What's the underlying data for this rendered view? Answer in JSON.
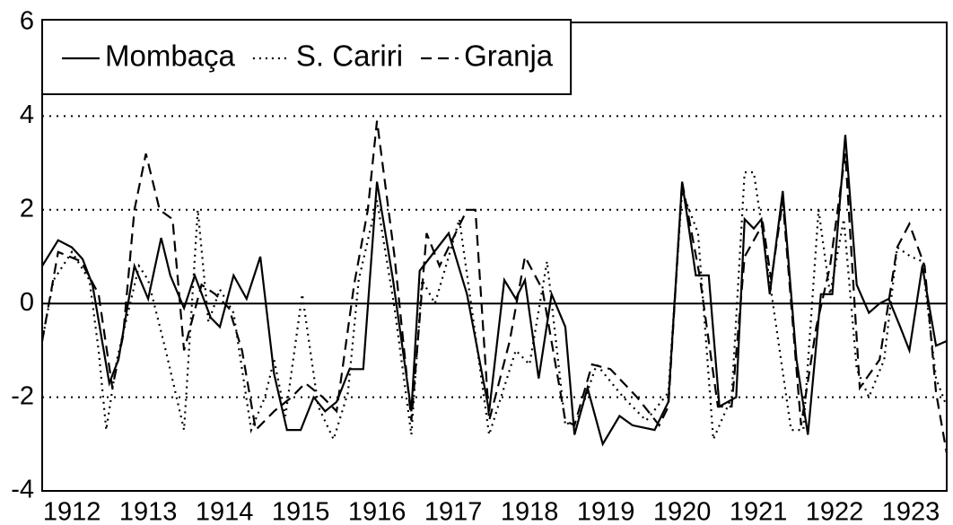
{
  "chart_data": {
    "type": "line",
    "xlim": [
      1911.61,
      1923.47
    ],
    "xticks": [
      1912,
      1913,
      1914,
      1915,
      1916,
      1917,
      1918,
      1919,
      1920,
      1921,
      1922,
      1923
    ],
    "ylim": [
      -4,
      6
    ],
    "yticks": [
      -4,
      -2,
      0,
      2,
      4,
      6
    ],
    "grid": true,
    "zero_line": true,
    "legend": "top-left",
    "series": [
      {
        "name": "Mombaça",
        "color": "#000000",
        "style": "solid",
        "x": [
          1911.61,
          1911.82,
          1912.0,
          1912.14,
          1912.27,
          1912.49,
          1912.61,
          1912.82,
          1913.0,
          1913.17,
          1913.29,
          1913.47,
          1913.61,
          1913.82,
          1913.94,
          1914.12,
          1914.29,
          1914.47,
          1914.65,
          1914.82,
          1915.0,
          1915.17,
          1915.32,
          1915.47,
          1915.64,
          1915.82,
          1916.0,
          1916.21,
          1916.45,
          1916.56,
          1916.94,
          1917.18,
          1917.47,
          1917.67,
          1917.82,
          1917.94,
          1918.12,
          1918.29,
          1918.47,
          1918.59,
          1918.76,
          1918.96,
          1919.18,
          1919.35,
          1919.64,
          1919.82,
          1920.0,
          1920.18,
          1920.35,
          1920.49,
          1920.71,
          1920.82,
          1920.94,
          1921.04,
          1921.15,
          1921.32,
          1921.5,
          1921.65,
          1921.82,
          1921.97,
          1922.14,
          1922.29,
          1922.45,
          1922.59,
          1922.71,
          1922.86,
          1922.98,
          1923.15,
          1923.33,
          1923.47
        ],
        "values": [
          0.8,
          1.35,
          1.2,
          0.95,
          0.4,
          -1.7,
          -1.2,
          0.8,
          0.1,
          1.4,
          0.6,
          -0.1,
          0.6,
          -0.3,
          -0.5,
          0.6,
          0.1,
          1.0,
          -1.5,
          -2.7,
          -2.7,
          -2.0,
          -2.3,
          -2.1,
          -1.4,
          -1.4,
          2.6,
          0.5,
          -2.3,
          0.7,
          1.5,
          0.2,
          -2.3,
          0.5,
          0.1,
          0.5,
          -1.6,
          0.2,
          -0.5,
          -2.8,
          -1.8,
          -3.0,
          -2.4,
          -2.6,
          -2.7,
          -2.1,
          2.6,
          0.6,
          0.6,
          -2.2,
          -2.0,
          1.8,
          1.6,
          1.8,
          0.2,
          2.4,
          -1.2,
          -2.8,
          0.2,
          0.2,
          3.6,
          0.4,
          -0.2,
          0.0,
          0.1,
          -0.5,
          -1.0,
          0.8,
          -0.9,
          -0.8
        ]
      },
      {
        "name": "S. Cariri",
        "color": "#000000",
        "style": "dotted",
        "x": [
          1911.61,
          1911.76,
          1912.0,
          1912.23,
          1912.35,
          1912.45,
          1912.59,
          1912.88,
          1913.0,
          1913.23,
          1913.47,
          1913.65,
          1913.79,
          1913.94,
          1914.12,
          1914.35,
          1914.53,
          1914.65,
          1914.8,
          1915.02,
          1915.23,
          1915.43,
          1915.62,
          1915.76,
          1916.0,
          1916.23,
          1916.45,
          1916.59,
          1916.76,
          1916.94,
          1917.08,
          1917.47,
          1917.82,
          1918.0,
          1918.23,
          1918.47,
          1918.65,
          1918.88,
          1919.23,
          1919.53,
          1919.82,
          1920.0,
          1920.21,
          1920.41,
          1920.65,
          1920.82,
          1920.94,
          1921.12,
          1921.43,
          1921.59,
          1921.79,
          1921.94,
          1922.12,
          1922.29,
          1922.45,
          1922.65,
          1922.82,
          1923.0,
          1923.15,
          1923.33,
          1923.47
        ],
        "values": [
          -0.8,
          0.5,
          1.1,
          0.5,
          -1.0,
          -2.7,
          -1.2,
          0.8,
          0.5,
          -1.0,
          -2.7,
          2.0,
          -0.4,
          0.3,
          -0.2,
          -2.7,
          -2.0,
          -1.2,
          -2.4,
          0.2,
          -2.2,
          -2.9,
          -1.9,
          0.5,
          2.2,
          -0.1,
          -2.8,
          0.5,
          0.0,
          1.0,
          1.8,
          -2.8,
          -1.0,
          -1.3,
          0.9,
          -2.6,
          -2.4,
          -1.3,
          -2.0,
          -2.5,
          -1.9,
          2.4,
          1.5,
          -2.9,
          -2.0,
          2.8,
          2.8,
          0.8,
          -2.7,
          -2.7,
          2.0,
          0.2,
          1.8,
          -1.4,
          -2.0,
          -1.2,
          1.2,
          1.0,
          0.9,
          -1.6,
          -2.2
        ]
      },
      {
        "name": "Granja",
        "color": "#000000",
        "style": "dashed",
        "x": [
          1911.61,
          1911.82,
          1912.12,
          1912.35,
          1912.53,
          1912.67,
          1912.82,
          1912.97,
          1913.15,
          1913.32,
          1913.47,
          1913.7,
          1913.88,
          1914.06,
          1914.23,
          1914.41,
          1914.65,
          1914.88,
          1915.06,
          1915.29,
          1915.47,
          1915.7,
          1915.88,
          1916.0,
          1916.23,
          1916.45,
          1916.65,
          1916.82,
          1917.18,
          1917.29,
          1917.47,
          1917.74,
          1917.94,
          1918.17,
          1918.47,
          1918.59,
          1918.82,
          1919.06,
          1919.41,
          1919.7,
          1919.82,
          1920.0,
          1920.23,
          1920.47,
          1920.65,
          1920.82,
          1921.06,
          1921.17,
          1921.32,
          1921.56,
          1921.76,
          1921.94,
          1922.14,
          1922.33,
          1922.59,
          1922.82,
          1922.98,
          1923.18,
          1923.33,
          1923.47
        ],
        "values": [
          -0.8,
          1.1,
          0.9,
          0.2,
          -1.8,
          -0.7,
          2.0,
          3.2,
          2.0,
          1.8,
          -1.0,
          0.4,
          0.2,
          -0.1,
          -1.0,
          -2.7,
          -2.3,
          -2.0,
          -1.7,
          -2.0,
          -2.3,
          0.4,
          2.0,
          3.9,
          1.0,
          -2.5,
          1.5,
          0.8,
          2.0,
          2.0,
          -2.5,
          -0.8,
          1.0,
          0.3,
          -2.5,
          -2.6,
          -1.3,
          -1.4,
          -2.0,
          -2.6,
          -2.2,
          2.6,
          0.6,
          -2.2,
          -2.2,
          1.0,
          1.7,
          0.5,
          2.2,
          -2.6,
          -0.5,
          0.8,
          3.2,
          -1.8,
          -1.2,
          1.2,
          1.7,
          0.8,
          -1.9,
          -3.2
        ]
      }
    ]
  }
}
